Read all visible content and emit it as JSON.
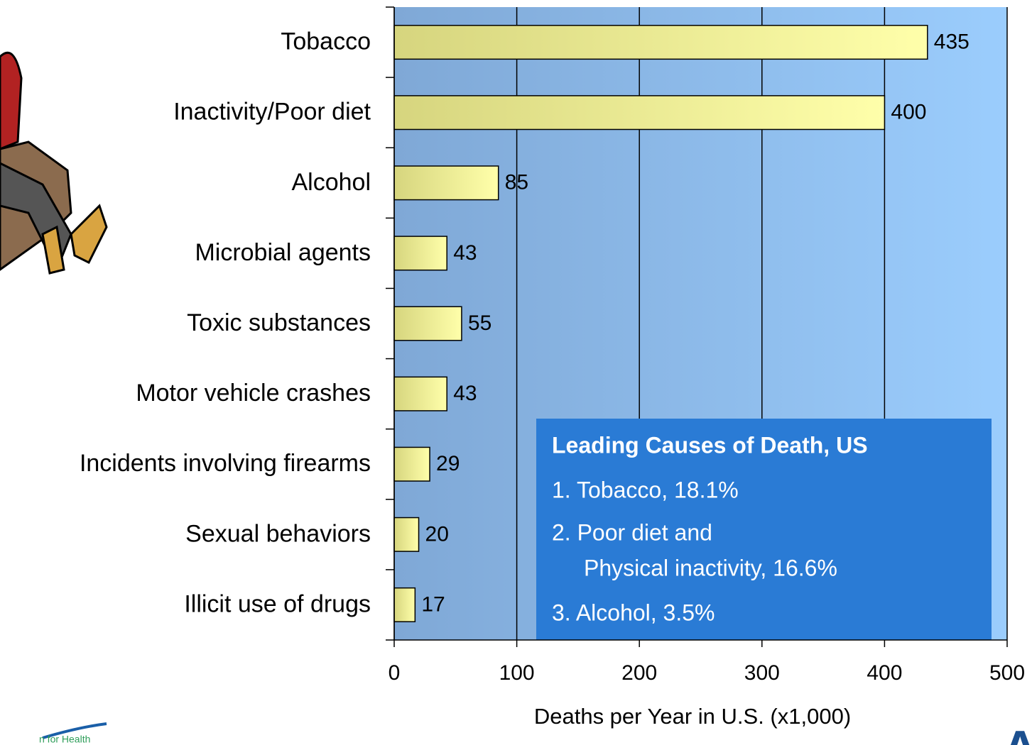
{
  "chart_data": {
    "type": "barh",
    "categories": [
      "Tobacco",
      "Inactivity/Poor diet",
      "Alcohol",
      "Microbial agents",
      "Toxic substances",
      "Motor vehicle crashes",
      "Incidents involving firearms",
      "Sexual behaviors",
      "Illicit use of drugs"
    ],
    "values": [
      435,
      400,
      85,
      43,
      55,
      43,
      29,
      20,
      17
    ],
    "xlim": [
      0,
      500
    ],
    "xticks": [
      0,
      100,
      200,
      300,
      400,
      500
    ],
    "grid": true,
    "x_label": "Deaths per Year in U.S. (x1,000)",
    "color": "#f4f49a",
    "annotation": {
      "title": "Leading Causes of Death, US",
      "lines": [
        "1. Tobacco, 18.1%",
        "2. Poor diet and",
        "Physical inactivity, 16.6%",
        "3. Alcohol, 3.5%"
      ]
    }
  },
  "footer": {
    "left_logo": "n for Health",
    "right_logo": "AC"
  }
}
